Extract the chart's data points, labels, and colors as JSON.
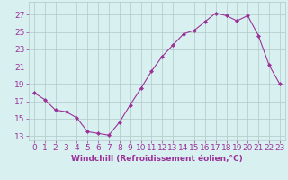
{
  "x": [
    0,
    1,
    2,
    3,
    4,
    5,
    6,
    7,
    8,
    9,
    10,
    11,
    12,
    13,
    14,
    15,
    16,
    17,
    18,
    19,
    20,
    21,
    22,
    23
  ],
  "y": [
    18.0,
    17.2,
    16.0,
    15.8,
    15.1,
    13.5,
    13.3,
    13.1,
    14.6,
    16.6,
    18.5,
    20.5,
    22.2,
    23.5,
    24.8,
    25.2,
    26.2,
    27.2,
    26.9,
    26.3,
    26.9,
    24.6,
    21.2,
    19.0
  ],
  "line_color": "#993399",
  "marker": "D",
  "marker_size": 2,
  "bg_color": "#d9f0f0",
  "grid_color": "#b0c8c8",
  "xlabel": "Windchill (Refroidissement éolien,°C)",
  "yticks": [
    13,
    15,
    17,
    19,
    21,
    23,
    25,
    27
  ],
  "xticks": [
    0,
    1,
    2,
    3,
    4,
    5,
    6,
    7,
    8,
    9,
    10,
    11,
    12,
    13,
    14,
    15,
    16,
    17,
    18,
    19,
    20,
    21,
    22,
    23
  ],
  "ylim": [
    12.5,
    28.5
  ],
  "xlim": [
    -0.5,
    23.5
  ],
  "tick_fontsize": 6.5,
  "xlabel_fontsize": 6.5
}
